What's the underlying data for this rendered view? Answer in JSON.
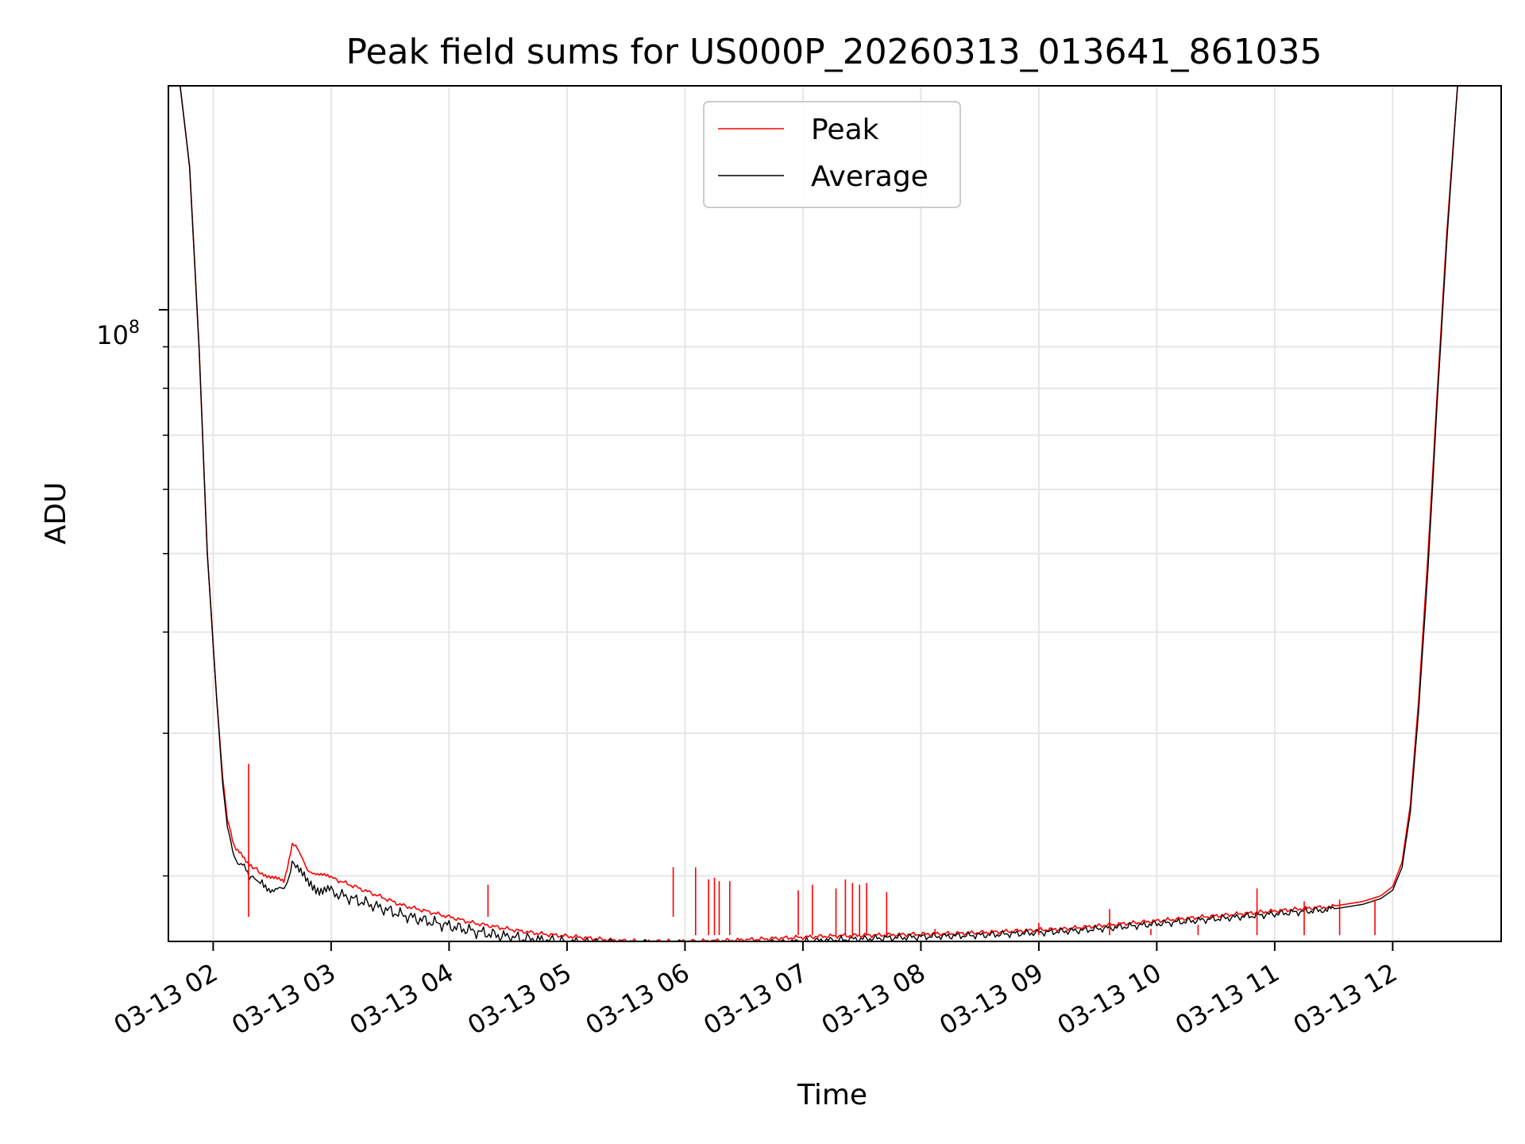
{
  "chart_data": {
    "type": "line",
    "title": "Peak field sums for US000P_20260313_013641_861035",
    "xlabel": "Time",
    "ylabel": "ADU",
    "yscale": "log",
    "grid": true,
    "legend_position": "top-center",
    "x_tick_labels": [
      "03-13 02",
      "03-13 03",
      "03-13 04",
      "03-13 05",
      "03-13 06",
      "03-13 07",
      "03-13 08",
      "03-13 09",
      "03-13 10",
      "03-13 11",
      "03-13 12"
    ],
    "x_ticks_hours": [
      2,
      3,
      4,
      5,
      6,
      7,
      8,
      9,
      10,
      11,
      12
    ],
    "xlim_hours": [
      1.62,
      12.92
    ],
    "y_tick_major": {
      "value": 100000000,
      "label_base": "10",
      "label_exp": "8"
    },
    "y_minor_ticks": [
      20000000,
      30000000,
      40000000,
      50000000,
      60000000,
      70000000,
      80000000,
      90000000
    ],
    "ylim": [
      16600000,
      189000000
    ],
    "series": [
      {
        "name": "Peak",
        "color": "#ff0000",
        "x_hours": [
          1.62,
          1.72,
          1.8,
          1.88,
          1.95,
          2.03,
          2.08,
          2.12,
          2.18,
          2.25,
          2.32,
          2.4,
          2.5,
          2.6,
          2.67,
          2.7,
          2.8,
          2.9,
          3.0,
          3.2,
          3.4,
          3.6,
          3.8,
          4.0,
          4.2,
          4.4,
          4.6,
          4.8,
          5.0,
          5.2,
          5.4,
          5.6,
          5.8,
          6.0,
          6.2,
          6.4,
          6.6,
          6.8,
          7.0,
          7.2,
          7.4,
          7.6,
          7.8,
          8.0,
          8.2,
          8.4,
          8.6,
          8.8,
          9.0,
          9.2,
          9.4,
          9.6,
          9.8,
          10.0,
          10.2,
          10.4,
          10.6,
          10.8,
          11.0,
          11.2,
          11.4,
          11.55,
          11.75,
          11.9,
          12.0,
          12.08,
          12.15,
          12.22,
          12.3,
          12.38,
          12.46,
          12.55,
          12.65,
          12.75,
          12.82,
          12.88,
          12.92
        ],
        "y": [
          189000000,
          189000000,
          150000000,
          90000000,
          50000000,
          33000000,
          26500000,
          23500000,
          21800000,
          21100000,
          20600000,
          20200000,
          19900000,
          19700000,
          21800000,
          21800000,
          20300000,
          20100000,
          19900000,
          19400000,
          18900000,
          18400000,
          18100000,
          17800000,
          17500000,
          17300000,
          17100000,
          16950000,
          16850000,
          16750000,
          16650000,
          16600000,
          16600000,
          16600000,
          16620000,
          16650000,
          16700000,
          16750000,
          16800000,
          16850000,
          16880000,
          16900000,
          16920000,
          16950000,
          16970000,
          17000000,
          17050000,
          17100000,
          17150000,
          17200000,
          17300000,
          17400000,
          17500000,
          17600000,
          17700000,
          17800000,
          17900000,
          18000000,
          18100000,
          18200000,
          18300000,
          18400000,
          18600000,
          18900000,
          19400000,
          20800000,
          24500000,
          33000000,
          50000000,
          80000000,
          125000000,
          189000000,
          189000000,
          189000000,
          189000000,
          189000000,
          189000000
        ]
      },
      {
        "name": "Average",
        "color": "#000000",
        "x_hours": [
          1.62,
          1.72,
          1.8,
          1.88,
          1.95,
          2.03,
          2.08,
          2.12,
          2.18,
          2.25,
          2.32,
          2.4,
          2.5,
          2.6,
          2.67,
          2.7,
          2.8,
          2.9,
          3.0,
          3.2,
          3.4,
          3.6,
          3.8,
          4.0,
          4.2,
          4.4,
          4.6,
          4.8,
          5.0,
          5.2,
          5.4,
          5.6,
          5.8,
          6.0,
          6.2,
          6.4,
          6.6,
          6.8,
          7.0,
          7.2,
          7.4,
          7.6,
          7.8,
          8.0,
          8.2,
          8.4,
          8.6,
          8.8,
          9.0,
          9.2,
          9.4,
          9.6,
          9.8,
          10.0,
          10.2,
          10.4,
          10.6,
          10.8,
          11.0,
          11.2,
          11.4,
          11.55,
          11.75,
          11.9,
          12.0,
          12.08,
          12.15,
          12.22,
          12.3,
          12.38,
          12.46,
          12.55,
          12.65,
          12.75,
          12.82,
          12.88,
          12.92
        ],
        "y": [
          189000000,
          189000000,
          150000000,
          90000000,
          50000000,
          33000000,
          26000000,
          23000000,
          21200000,
          20500000,
          20000000,
          19600000,
          19300000,
          19100000,
          20800000,
          20800000,
          19500000,
          19300000,
          19100000,
          18700000,
          18300000,
          17900000,
          17600000,
          17350000,
          17100000,
          16900000,
          16750000,
          16650000,
          16550000,
          16480000,
          16420000,
          16380000,
          16360000,
          16350000,
          16380000,
          16420000,
          16480000,
          16540000,
          16600000,
          16650000,
          16700000,
          16740000,
          16780000,
          16820000,
          16850000,
          16880000,
          16920000,
          16970000,
          17020000,
          17080000,
          17150000,
          17250000,
          17350000,
          17450000,
          17550000,
          17650000,
          17750000,
          17850000,
          17950000,
          18050000,
          18150000,
          18250000,
          18450000,
          18750000,
          19200000,
          20500000,
          24000000,
          32000000,
          48000000,
          78000000,
          122000000,
          189000000,
          189000000,
          189000000,
          189000000,
          189000000,
          189000000
        ]
      }
    ],
    "spikes": [
      {
        "x_hours": 2.3,
        "peak": 27500000
      },
      {
        "x_hours": 4.33,
        "peak": 19500000
      },
      {
        "x_hours": 5.9,
        "peak": 20500000
      },
      {
        "x_hours": 6.09,
        "peak": 20500000
      },
      {
        "x_hours": 6.2,
        "peak": 19800000
      },
      {
        "x_hours": 6.25,
        "peak": 19900000
      },
      {
        "x_hours": 6.29,
        "peak": 19700000
      },
      {
        "x_hours": 6.38,
        "peak": 19700000
      },
      {
        "x_hours": 6.96,
        "peak": 19200000
      },
      {
        "x_hours": 7.08,
        "peak": 19500000
      },
      {
        "x_hours": 7.28,
        "peak": 19300000
      },
      {
        "x_hours": 7.36,
        "peak": 19800000
      },
      {
        "x_hours": 7.42,
        "peak": 19600000
      },
      {
        "x_hours": 7.48,
        "peak": 19500000
      },
      {
        "x_hours": 7.54,
        "peak": 19600000
      },
      {
        "x_hours": 7.71,
        "peak": 19100000
      },
      {
        "x_hours": 8.12,
        "peak": 17200000
      },
      {
        "x_hours": 8.57,
        "peak": 17000000
      },
      {
        "x_hours": 9.0,
        "peak": 17500000
      },
      {
        "x_hours": 9.6,
        "peak": 18200000
      },
      {
        "x_hours": 9.95,
        "peak": 17200000
      },
      {
        "x_hours": 10.35,
        "peak": 17400000
      },
      {
        "x_hours": 10.85,
        "peak": 19300000
      },
      {
        "x_hours": 11.25,
        "peak": 18600000
      },
      {
        "x_hours": 11.55,
        "peak": 18700000
      },
      {
        "x_hours": 11.85,
        "peak": 18700000
      }
    ]
  }
}
